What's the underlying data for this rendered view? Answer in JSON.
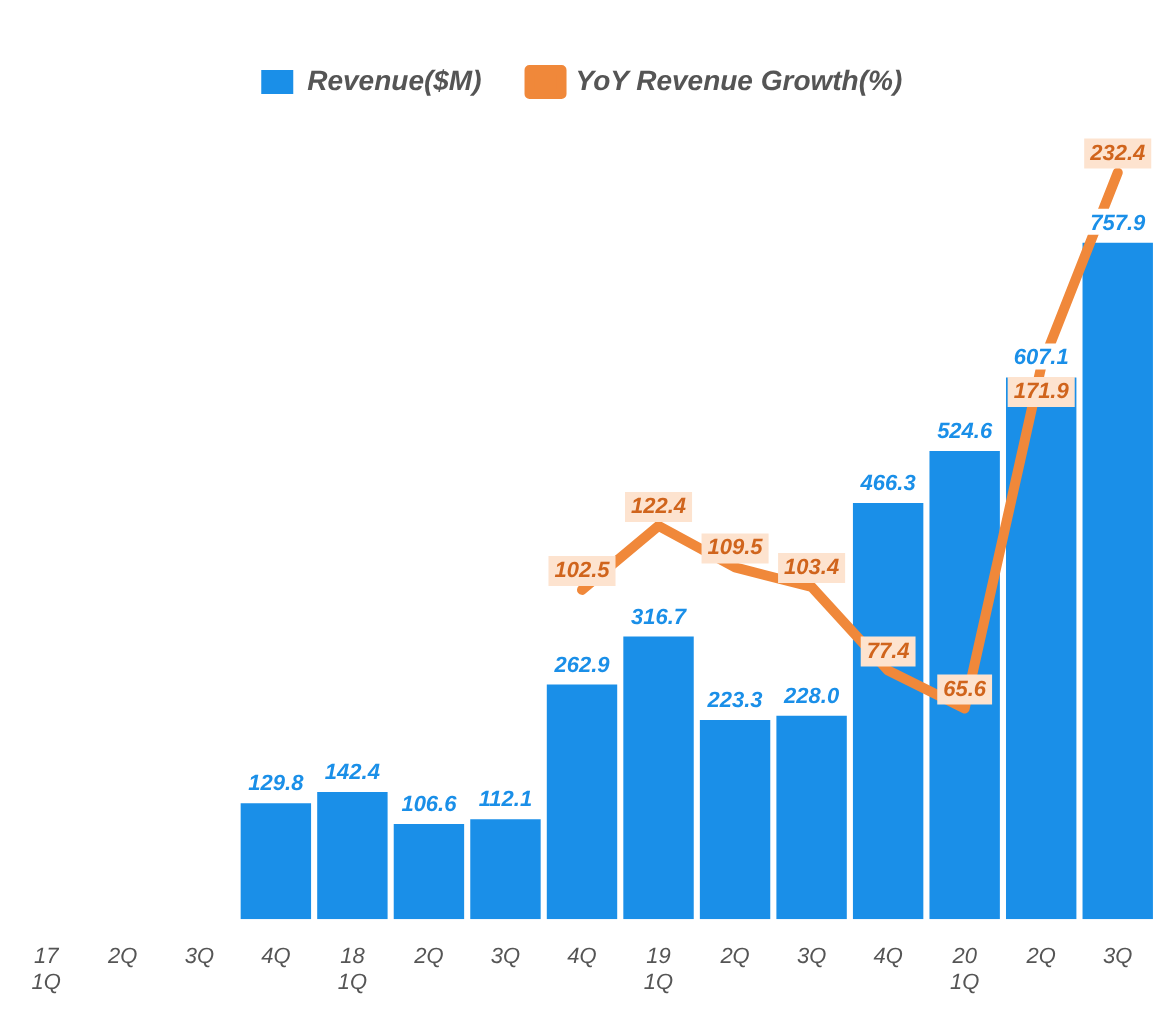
{
  "chart_data": {
    "type": "bar",
    "categories": [
      "17\n1Q",
      "2Q",
      "3Q",
      "4Q",
      "18\n1Q",
      "2Q",
      "3Q",
      "4Q",
      "19\n1Q",
      "2Q",
      "3Q",
      "4Q",
      "20\n1Q",
      "2Q",
      "3Q"
    ],
    "series": [
      {
        "name": "Revenue($M)",
        "color": "#1a8fe8",
        "values": [
          null,
          null,
          null,
          129.8,
          142.4,
          106.6,
          112.1,
          262.9,
          316.7,
          223.3,
          228.0,
          466.3,
          524.6,
          607.1,
          757.9
        ],
        "value_labels": [
          null,
          null,
          null,
          "129.8",
          "142.4",
          "106.6",
          "112.1",
          "262.9",
          "316.7",
          "223.3",
          "228.0",
          "466.3",
          "524.6",
          "607.1",
          "757.9"
        ]
      },
      {
        "name": "YoY Revenue Growth(%)",
        "type": "line",
        "axis": "y2",
        "color": "#f0883a",
        "values": [
          null,
          null,
          null,
          null,
          null,
          null,
          null,
          102.5,
          122.4,
          109.5,
          103.4,
          77.4,
          65.6,
          171.9,
          232.4
        ],
        "value_labels": [
          null,
          null,
          null,
          null,
          null,
          null,
          null,
          "102.5",
          "122.4",
          "109.5",
          "103.4",
          "77.4",
          "65.6",
          "171.9",
          "232.4"
        ]
      }
    ],
    "data_labels": true,
    "legend": "top",
    "grid": false,
    "marker": "none",
    "line_style": "solid",
    "tick_labels": "x"
  }
}
